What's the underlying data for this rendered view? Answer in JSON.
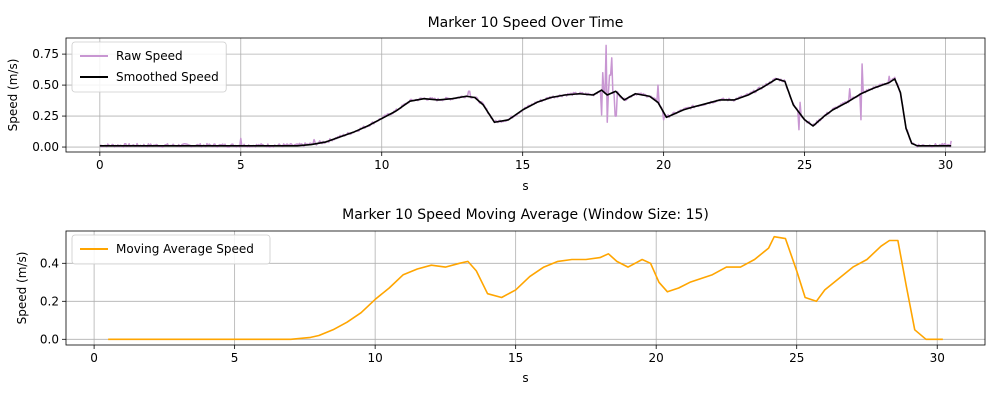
{
  "chart_data": [
    {
      "type": "line",
      "title": "Marker 10 Speed Over Time",
      "xlabel": "s",
      "ylabel": "Speed (m/s)",
      "xlim": [
        -1.2,
        31.4
      ],
      "ylim": [
        -0.04,
        0.88
      ],
      "xticks": [
        0,
        5,
        10,
        15,
        20,
        25,
        30
      ],
      "yticks": [
        0.0,
        0.25,
        0.5,
        0.75
      ],
      "ytick_labels": [
        "0.00",
        "0.25",
        "0.50",
        "0.75"
      ],
      "grid": true,
      "legend": "top-left",
      "series": [
        {
          "name": "Raw Speed",
          "color": "#c896d2",
          "noise_amplitude": 0.03,
          "spikes": [
            [
              5.0,
              0.07
            ],
            [
              7.6,
              0.06
            ],
            [
              13.1,
              0.45
            ],
            [
              17.8,
              0.26
            ],
            [
              17.85,
              0.6
            ],
            [
              17.95,
              0.82
            ],
            [
              18.0,
              0.2
            ],
            [
              18.1,
              0.58
            ],
            [
              18.15,
              0.72
            ],
            [
              18.3,
              0.25
            ],
            [
              19.8,
              0.5
            ],
            [
              20.0,
              0.22
            ],
            [
              24.8,
              0.14
            ],
            [
              24.85,
              0.36
            ],
            [
              26.6,
              0.47
            ],
            [
              27.0,
              0.22
            ],
            [
              27.05,
              0.67
            ],
            [
              28.0,
              0.57
            ],
            [
              30.2,
              0.05
            ]
          ],
          "values_ref": "smoothed"
        },
        {
          "name": "Smoothed Speed",
          "color": "#000000",
          "x": [
            0,
            1,
            2,
            3,
            4,
            5,
            6,
            7,
            7.5,
            8,
            8.5,
            9,
            9.5,
            10,
            10.5,
            11,
            11.5,
            12,
            12.5,
            13,
            13.3,
            13.6,
            14,
            14.5,
            15,
            15.5,
            16,
            16.5,
            17,
            17.5,
            17.8,
            18,
            18.3,
            18.6,
            19,
            19.5,
            19.8,
            20.1,
            20.3,
            20.7,
            21,
            21.5,
            22,
            22.5,
            23,
            23.5,
            24,
            24.3,
            24.6,
            25,
            25.3,
            25.7,
            26,
            26.5,
            27,
            27.5,
            28,
            28.2,
            28.4,
            28.6,
            28.8,
            29,
            29.5,
            30,
            30.2
          ],
          "y": [
            0.01,
            0.01,
            0.01,
            0.01,
            0.01,
            0.01,
            0.01,
            0.01,
            0.02,
            0.04,
            0.08,
            0.12,
            0.17,
            0.23,
            0.29,
            0.37,
            0.39,
            0.38,
            0.39,
            0.41,
            0.4,
            0.34,
            0.2,
            0.22,
            0.3,
            0.36,
            0.4,
            0.42,
            0.43,
            0.42,
            0.46,
            0.42,
            0.45,
            0.38,
            0.43,
            0.41,
            0.36,
            0.24,
            0.26,
            0.3,
            0.32,
            0.35,
            0.38,
            0.38,
            0.42,
            0.48,
            0.55,
            0.53,
            0.34,
            0.22,
            0.17,
            0.25,
            0.3,
            0.36,
            0.43,
            0.48,
            0.52,
            0.55,
            0.44,
            0.15,
            0.03,
            0.01,
            0.01,
            0.01,
            0.01
          ]
        }
      ]
    },
    {
      "type": "line",
      "title": "Marker 10 Speed Moving Average (Window Size: 15)",
      "xlabel": "s",
      "ylabel": "Speed (m/s)",
      "xlim": [
        -1.0,
        31.7
      ],
      "ylim": [
        -0.03,
        0.57
      ],
      "xticks": [
        0,
        5,
        10,
        15,
        20,
        25,
        30
      ],
      "yticks": [
        0.0,
        0.2,
        0.4
      ],
      "ytick_labels": [
        "0.0",
        "0.2",
        "0.4"
      ],
      "grid": true,
      "legend": "top-left",
      "series": [
        {
          "name": "Moving Average Speed",
          "color": "#ffa500",
          "x": [
            0.5,
            1,
            2,
            3,
            4,
            5,
            6,
            7,
            7.7,
            8,
            8.5,
            9,
            9.5,
            10,
            10.5,
            11,
            11.5,
            12,
            12.5,
            13,
            13.3,
            13.6,
            14,
            14.5,
            15,
            15.5,
            16,
            16.5,
            17,
            17.5,
            18,
            18.3,
            18.6,
            19,
            19.5,
            19.8,
            20.1,
            20.4,
            20.8,
            21.2,
            21.6,
            22,
            22.5,
            23,
            23.5,
            24,
            24.2,
            24.6,
            25,
            25.3,
            25.7,
            26,
            26.5,
            27,
            27.5,
            28,
            28.3,
            28.6,
            28.9,
            29.2,
            29.6,
            30,
            30.2
          ],
          "y": [
            0.0,
            0.0,
            0.0,
            0.0,
            0.0,
            0.0,
            0.0,
            0.0,
            0.01,
            0.02,
            0.05,
            0.09,
            0.14,
            0.21,
            0.27,
            0.34,
            0.37,
            0.39,
            0.38,
            0.4,
            0.41,
            0.36,
            0.24,
            0.22,
            0.26,
            0.33,
            0.38,
            0.41,
            0.42,
            0.42,
            0.43,
            0.45,
            0.41,
            0.38,
            0.42,
            0.4,
            0.3,
            0.25,
            0.27,
            0.3,
            0.32,
            0.34,
            0.38,
            0.38,
            0.42,
            0.48,
            0.54,
            0.53,
            0.36,
            0.22,
            0.2,
            0.26,
            0.32,
            0.38,
            0.42,
            0.49,
            0.52,
            0.52,
            0.28,
            0.05,
            0.0,
            0.0,
            0.0
          ]
        }
      ]
    }
  ]
}
